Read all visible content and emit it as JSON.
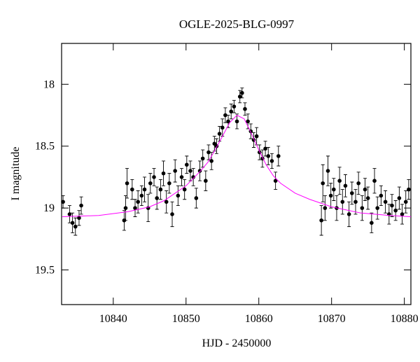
{
  "chart_data": {
    "type": "scatter",
    "title": "OGLE-2025-BLG-0997",
    "xlabel": "HJD - 2450000",
    "ylabel": "I magnitude",
    "xlim": [
      10832.9,
      10880.9
    ],
    "ylim": [
      17.67,
      19.78
    ],
    "y_inverted": true,
    "xticks": [
      10840,
      10850,
      10860,
      10870,
      10880
    ],
    "yticks": [
      18,
      18.5,
      19,
      19.5
    ],
    "series": [
      {
        "type": "scatter",
        "color": "#000000",
        "x": [
          10833.1,
          10834.0,
          10834.4,
          10834.8,
          10835.3,
          10835.6,
          10841.5,
          10841.7,
          10841.9,
          10842.6,
          10843.0,
          10843.4,
          10843.9,
          10844.3,
          10844.8,
          10845.1,
          10845.6,
          10846.0,
          10846.5,
          10846.9,
          10847.3,
          10847.7,
          10848.1,
          10848.5,
          10848.9,
          10849.4,
          10849.8,
          10850.1,
          10850.6,
          10851.0,
          10851.4,
          10851.9,
          10852.3,
          10852.7,
          10853.1,
          10853.5,
          10853.9,
          10854.2,
          10854.6,
          10855.0,
          10855.4,
          10855.8,
          10856.2,
          10856.6,
          10857.0,
          10857.4,
          10857.7,
          10858.1,
          10858.5,
          10858.9,
          10859.3,
          10859.7,
          10860.1,
          10860.5,
          10860.9,
          10861.3,
          10861.8,
          10862.3,
          10862.7,
          10868.6,
          10868.8,
          10869.1,
          10869.5,
          10869.9,
          10870.3,
          10870.7,
          10871.1,
          10871.5,
          10871.9,
          10872.4,
          10872.8,
          10873.3,
          10873.7,
          10874.2,
          10874.6,
          10875.0,
          10875.5,
          10875.9,
          10876.3,
          10876.8,
          10877.4,
          10877.9,
          10878.3,
          10878.8,
          10879.3,
          10879.7,
          10880.2,
          10880.6
        ],
        "values": [
          18.95,
          19.05,
          19.12,
          19.15,
          19.08,
          18.98,
          19.1,
          19.0,
          18.8,
          18.85,
          19.0,
          18.95,
          18.9,
          18.85,
          19.0,
          18.8,
          18.75,
          18.92,
          18.85,
          18.72,
          18.95,
          18.8,
          19.05,
          18.7,
          18.9,
          18.75,
          18.85,
          18.65,
          18.7,
          18.75,
          18.92,
          18.7,
          18.6,
          18.78,
          18.55,
          18.62,
          18.48,
          18.5,
          18.4,
          18.35,
          18.25,
          18.3,
          18.22,
          18.18,
          18.3,
          18.1,
          18.07,
          18.2,
          18.3,
          18.38,
          18.45,
          18.42,
          18.55,
          18.6,
          18.52,
          18.58,
          18.62,
          18.78,
          18.58,
          19.1,
          18.8,
          19.0,
          18.7,
          18.9,
          18.85,
          19.0,
          18.78,
          18.95,
          18.82,
          19.05,
          18.88,
          18.95,
          18.8,
          19.0,
          18.85,
          18.92,
          19.12,
          18.78,
          19.0,
          18.9,
          18.95,
          19.05,
          18.98,
          19.02,
          18.92,
          19.05,
          18.95,
          18.85
        ],
        "errors": [
          0.05,
          0.07,
          0.08,
          0.07,
          0.06,
          0.07,
          0.08,
          0.1,
          0.12,
          0.08,
          0.07,
          0.09,
          0.08,
          0.1,
          0.11,
          0.08,
          0.07,
          0.09,
          0.08,
          0.1,
          0.09,
          0.08,
          0.1,
          0.09,
          0.08,
          0.07,
          0.08,
          0.07,
          0.08,
          0.07,
          0.08,
          0.08,
          0.07,
          0.08,
          0.06,
          0.07,
          0.06,
          0.06,
          0.06,
          0.07,
          0.06,
          0.05,
          0.06,
          0.05,
          0.06,
          0.05,
          0.04,
          0.05,
          0.06,
          0.06,
          0.06,
          0.07,
          0.06,
          0.07,
          0.06,
          0.07,
          0.06,
          0.07,
          0.08,
          0.12,
          0.15,
          0.1,
          0.12,
          0.1,
          0.09,
          0.1,
          0.11,
          0.1,
          0.09,
          0.1,
          0.09,
          0.1,
          0.09,
          0.1,
          0.09,
          0.09,
          0.08,
          0.1,
          0.09,
          0.08,
          0.09,
          0.08,
          0.09,
          0.08,
          0.09,
          0.08,
          0.09,
          0.08
        ]
      },
      {
        "type": "line",
        "color": "#ff00ff",
        "x": [
          10833,
          10838,
          10842,
          10845,
          10847,
          10849,
          10850,
          10851,
          10852,
          10853,
          10854,
          10855,
          10856,
          10857,
          10858,
          10859,
          10860,
          10861,
          10862,
          10863,
          10865,
          10867,
          10870,
          10874,
          10878,
          10880.9
        ],
        "values": [
          19.07,
          19.06,
          19.03,
          18.99,
          18.94,
          18.86,
          18.82,
          18.76,
          18.7,
          18.63,
          18.53,
          18.42,
          18.31,
          18.25,
          18.28,
          18.4,
          18.53,
          18.65,
          18.74,
          18.8,
          18.88,
          18.93,
          18.99,
          19.04,
          19.06,
          19.07
        ]
      }
    ]
  }
}
